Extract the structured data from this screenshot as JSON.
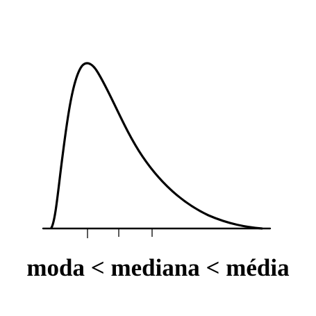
{
  "caption": "moda < mediana < média",
  "colors": {
    "curve": "#000000",
    "axis": "#000000",
    "background": "#ffffff"
  },
  "diagram": {
    "type": "skewed-distribution-curve",
    "skew": "right",
    "markers": [
      {
        "name": "moda",
        "order": 1
      },
      {
        "name": "mediana",
        "order": 2
      },
      {
        "name": "média",
        "order": 3
      }
    ]
  }
}
